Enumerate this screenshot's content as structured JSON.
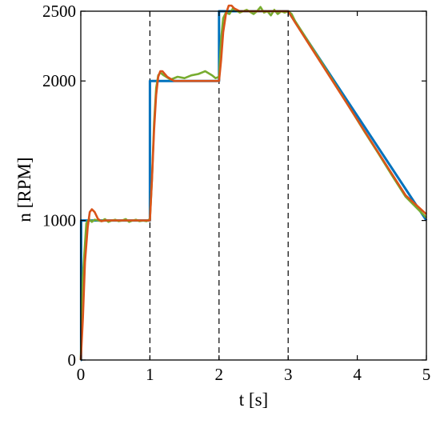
{
  "chart_data": {
    "type": "line",
    "xlabel": "t [s]",
    "ylabel": "n [RPM]",
    "xlim": [
      0,
      5
    ],
    "ylim": [
      0,
      2500
    ],
    "x_ticks": [
      "0",
      "1",
      "2",
      "3",
      "4",
      "5"
    ],
    "y_ticks": [
      "0",
      "1000",
      "2000",
      "2500"
    ],
    "grid": false,
    "box": true,
    "vertical_dashed_lines": [
      1,
      2,
      3
    ],
    "series": [
      {
        "color": "#0072BD",
        "x": [
          0,
          0.005,
          0.005,
          1.0,
          1.0,
          2.0,
          2.0,
          3.0,
          5.0
        ],
        "y": [
          0,
          0,
          1000,
          1000,
          2000,
          2000,
          2500,
          2500,
          1000
        ]
      },
      {
        "color": "#77AC30",
        "x": [
          0,
          0.03,
          0.08,
          0.12,
          0.16,
          0.2,
          0.25,
          0.3,
          0.35,
          0.4,
          0.45,
          0.5,
          0.55,
          0.6,
          0.65,
          0.7,
          0.75,
          0.8,
          0.85,
          0.9,
          0.95,
          1.0,
          1.03,
          1.06,
          1.09,
          1.12,
          1.15,
          1.2,
          1.3,
          1.4,
          1.5,
          1.6,
          1.7,
          1.8,
          1.9,
          1.95,
          2.0,
          2.03,
          2.06,
          2.1,
          2.15,
          2.2,
          2.3,
          2.4,
          2.5,
          2.55,
          2.6,
          2.65,
          2.7,
          2.75,
          2.8,
          2.85,
          2.9,
          2.95,
          3.0,
          3.05,
          3.1,
          3.3,
          3.5,
          3.7,
          3.9,
          4.0,
          4.1,
          4.3,
          4.5,
          4.7,
          5.0
        ],
        "y": [
          0,
          600,
          980,
          1010,
          990,
          1005,
          1000,
          995,
          1010,
          990,
          1000,
          1005,
          995,
          1000,
          1010,
          990,
          1000,
          1005,
          995,
          1000,
          995,
          1010,
          1300,
          1700,
          1950,
          2040,
          2060,
          2040,
          2010,
          2030,
          2020,
          2040,
          2050,
          2070,
          2040,
          2020,
          2030,
          2300,
          2450,
          2490,
          2480,
          2520,
          2490,
          2510,
          2480,
          2500,
          2530,
          2490,
          2500,
          2470,
          2510,
          2480,
          2500,
          2490,
          2500,
          2480,
          2430,
          2275,
          2120,
          1960,
          1800,
          1720,
          1640,
          1485,
          1325,
          1170,
          1020
        ]
      },
      {
        "color": "#D95319",
        "x": [
          0,
          0.03,
          0.06,
          0.1,
          0.13,
          0.16,
          0.2,
          0.25,
          0.3,
          0.35,
          0.4,
          0.5,
          0.6,
          0.7,
          0.8,
          0.9,
          1.0,
          1.03,
          1.06,
          1.09,
          1.12,
          1.15,
          1.18,
          1.25,
          1.35,
          1.5,
          1.7,
          1.9,
          2.0,
          2.03,
          2.06,
          2.1,
          2.14,
          2.18,
          2.22,
          2.3,
          2.4,
          2.6,
          2.8,
          3.0,
          3.05,
          3.1,
          3.3,
          3.5,
          3.7,
          3.9,
          4.1,
          4.3,
          4.5,
          4.7,
          5.0
        ],
        "y": [
          0,
          300,
          700,
          950,
          1060,
          1080,
          1060,
          1010,
          995,
          1000,
          1000,
          1000,
          1000,
          1000,
          1000,
          1000,
          1000,
          1300,
          1650,
          1900,
          2030,
          2070,
          2070,
          2030,
          2000,
          2000,
          2000,
          2000,
          2000,
          2150,
          2350,
          2480,
          2540,
          2540,
          2520,
          2500,
          2500,
          2500,
          2500,
          2500,
          2460,
          2420,
          2265,
          2110,
          1955,
          1800,
          1645,
          1490,
          1335,
          1180,
          1045
        ]
      }
    ]
  }
}
